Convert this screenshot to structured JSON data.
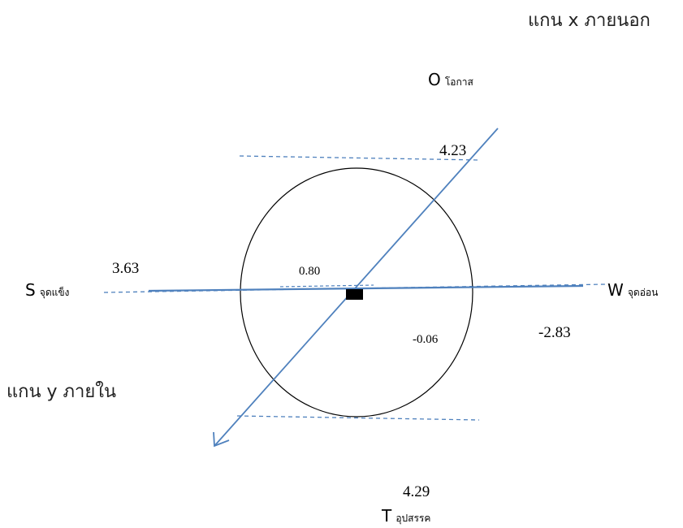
{
  "axes": {
    "x_title": "แกน x ภายนอก",
    "y_title": "แกน y ภายใน"
  },
  "quadrants": {
    "opportunity": {
      "letter": "O",
      "name": "โอกาส"
    },
    "strength": {
      "letter": "S",
      "name": "จุดแข็ง"
    },
    "weakness": {
      "letter": "W",
      "name": "จุดอ่อน"
    },
    "threat": {
      "letter": "T",
      "name": "อุปสรรค"
    }
  },
  "scores": {
    "opportunity": "4.23",
    "strength": "3.63",
    "weakness": "-2.83",
    "threat": "4.29",
    "internal_net": "0.80",
    "external_net": "-0.06"
  },
  "colors": {
    "axis_line": "#4f81bd",
    "dashed_line": "#4f81bd",
    "circle": "#000000",
    "center_marker": "#000000"
  }
}
